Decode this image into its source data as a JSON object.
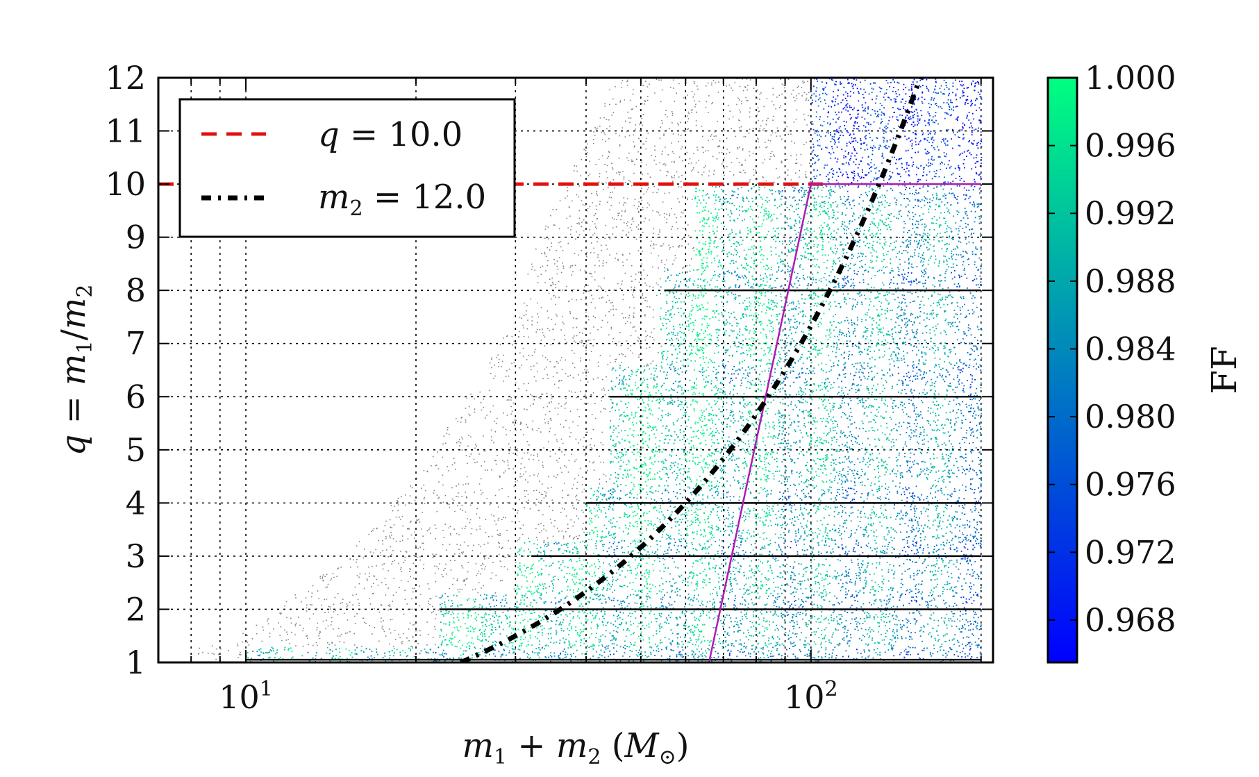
{
  "chart_data": {
    "type": "scatter",
    "xscale": "log",
    "xlim": [
      7,
      210
    ],
    "ylim": [
      1,
      12
    ],
    "xlabel_parts": [
      "m",
      "1",
      " + ",
      "m",
      "2",
      " (",
      "M",
      "⊙",
      ")"
    ],
    "ylabel_parts": [
      "q",
      " = ",
      "m",
      "1",
      "/",
      "m",
      "2"
    ],
    "xticks": [
      {
        "base": "10",
        "exp": "1",
        "value": 10
      },
      {
        "base": "10",
        "exp": "2",
        "value": 100
      }
    ],
    "yticks": [
      "1",
      "2",
      "3",
      "4",
      "5",
      "6",
      "7",
      "8",
      "9",
      "10",
      "11",
      "12"
    ],
    "grid": true,
    "colorbar": {
      "label": "FF",
      "range": [
        0.9655,
        1.0
      ],
      "ticks": [
        "1.000",
        "0.996",
        "0.992",
        "0.988",
        "0.984",
        "0.980",
        "0.976",
        "0.972",
        "0.968"
      ],
      "colors": [
        "#0000ff",
        "#00ff80"
      ]
    },
    "legend": {
      "location": "upper-left",
      "entries": [
        {
          "label_parts": [
            "q",
            " = 10.0",
            "",
            ""
          ],
          "style": "dashed",
          "color": "#e01010"
        },
        {
          "label_parts": [
            "m",
            "",
            "2",
            " = 12.0"
          ],
          "style": "dashdot",
          "color": "#000000"
        }
      ]
    },
    "series": [
      {
        "name": "q = 10.0",
        "type": "hline",
        "y": 10,
        "x_range": [
          7,
          105
        ],
        "color": "#e01010",
        "style": "dashed"
      },
      {
        "name": "m2 = 12.0",
        "type": "curve",
        "relation": "m1+m2 = 12*(q+1)",
        "q_range": [
          1,
          12
        ],
        "color": "#000000",
        "style": "dashdot"
      },
      {
        "name": "boundary",
        "type": "polyline",
        "x": [
          66,
          100,
          200
        ],
        "y": [
          1,
          10,
          10
        ],
        "color": "#b01ab0"
      },
      {
        "name": "template rows",
        "type": "hsegments",
        "color": "#000000",
        "segments": [
          {
            "y": 1.05,
            "x_range": [
              10,
              200
            ]
          },
          {
            "y": 1.0,
            "x_range": [
              7,
              22
            ]
          },
          {
            "y": 2,
            "x_range": [
              22,
              200
            ]
          },
          {
            "y": 3,
            "x_range": [
              32,
              200
            ]
          },
          {
            "y": 4,
            "x_range": [
              40,
              200
            ]
          },
          {
            "y": 6,
            "x_range": [
              44,
              200
            ]
          },
          {
            "y": 8,
            "x_range": [
              55,
              200
            ]
          }
        ]
      },
      {
        "name": "grey samples",
        "type": "scatter-region",
        "color": "#555555",
        "region": {
          "x_min": 7,
          "x_max": 200,
          "q_boundary": [
            [
              7,
              1
            ],
            [
              10,
              1.6
            ],
            [
              15,
              3
            ],
            [
              20,
              4.5
            ],
            [
              28,
              7
            ],
            [
              36,
              10
            ],
            [
              45,
              12
            ]
          ]
        }
      },
      {
        "name": "FF samples",
        "type": "scatter-region",
        "colormap": "winter",
        "region": {
          "x_max": 200,
          "q_steps": [
            {
              "q_range": [
                1,
                1.3
              ],
              "x_min": 10
            },
            {
              "q_range": [
                1.3,
                2.3
              ],
              "x_min": 22
            },
            {
              "q_range": [
                2.3,
                3.3
              ],
              "x_min": 30
            },
            {
              "q_range": [
                3.3,
                4.3
              ],
              "x_min": 40
            },
            {
              "q_range": [
                4.3,
                6.6
              ],
              "x_min": 44
            },
            {
              "q_range": [
                6.6,
                8.4
              ],
              "x_min": 54
            },
            {
              "q_range": [
                8.4,
                10.0
              ],
              "x_min": 62
            },
            {
              "q_range": [
                10.0,
                12.0
              ],
              "x_min": 100
            }
          ]
        }
      }
    ]
  }
}
